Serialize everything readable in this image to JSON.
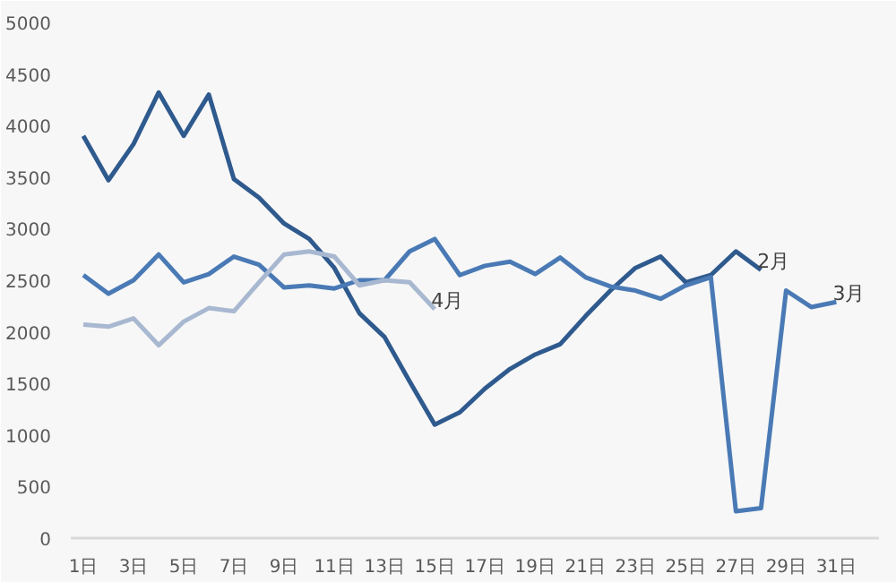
{
  "chart_data": {
    "type": "line",
    "categories": [
      "1日",
      null,
      "3日",
      null,
      "5日",
      null,
      "7日",
      null,
      "9日",
      null,
      "11日",
      null,
      "13日",
      null,
      "15日",
      null,
      "17日",
      null,
      "19日",
      null,
      "21日",
      null,
      "23日",
      null,
      "25日",
      null,
      "27日",
      null,
      "29日",
      null,
      "31日"
    ],
    "ylim": [
      0,
      5000
    ],
    "yticks": [
      0,
      500,
      1000,
      1500,
      2000,
      2500,
      3000,
      3500,
      4000,
      4500,
      5000
    ],
    "grid": false,
    "marker": "none",
    "line_style": "solid",
    "series": [
      {
        "name": "2月",
        "color": "#2f5a8e",
        "values": [
          3900,
          3470,
          3820,
          4320,
          3900,
          4300,
          3480,
          3300,
          3050,
          2900,
          2620,
          2180,
          1950,
          1520,
          1100,
          1220,
          1450,
          1640,
          1780,
          1880,
          2150,
          2400,
          2620,
          2730,
          2480,
          2550,
          2780,
          2600,
          null,
          null,
          null
        ]
      },
      {
        "name": "3月",
        "color": "#4a7ab5",
        "values": [
          2550,
          2370,
          2500,
          2750,
          2480,
          2560,
          2730,
          2650,
          2430,
          2450,
          2420,
          2500,
          2500,
          2780,
          2900,
          2550,
          2640,
          2680,
          2560,
          2720,
          2530,
          2440,
          2400,
          2320,
          2450,
          2530,
          260,
          290,
          2400,
          2240,
          2290
        ]
      },
      {
        "name": "4月",
        "color": "#a8b8d0",
        "values": [
          2070,
          2050,
          2130,
          1870,
          2100,
          2230,
          2200,
          2480,
          2750,
          2780,
          2730,
          2450,
          2500,
          2480,
          2220,
          null,
          null,
          null,
          null,
          null,
          null,
          null,
          null,
          null,
          null,
          null,
          null,
          null,
          null,
          null,
          null
        ]
      }
    ]
  }
}
